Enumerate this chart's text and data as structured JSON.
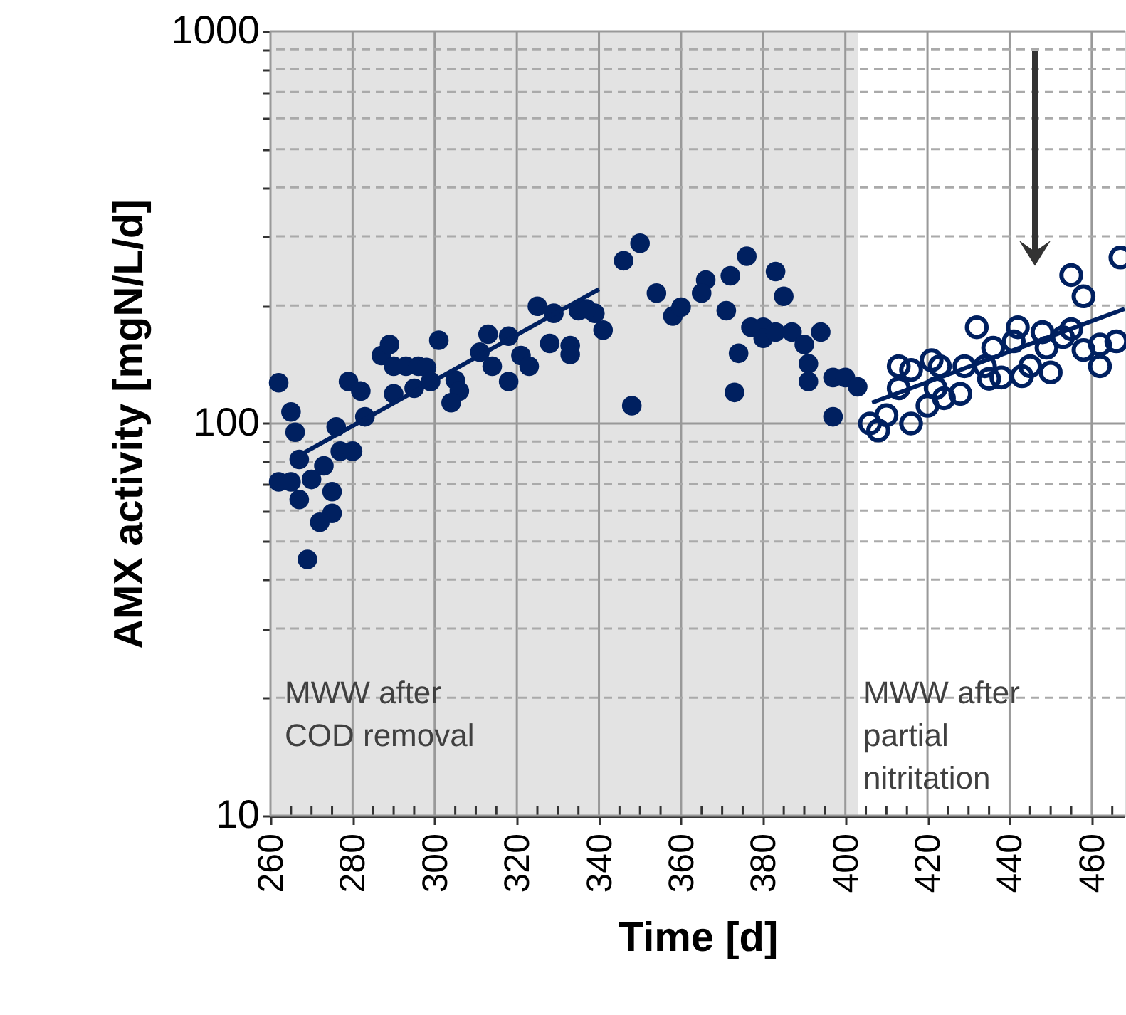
{
  "chart_data": {
    "type": "scatter",
    "xlabel": "Time [d]",
    "ylabel": "AMX activity [mgN/L/d]",
    "xlim": [
      260,
      468
    ],
    "xticks": [
      260,
      {
        "value": 265,
        "label": null
      },
      {
        "value": 270,
        "label": null
      },
      {
        "value": 275,
        "label": null
      },
      280,
      {
        "value": 285,
        "label": null
      },
      {
        "value": 290,
        "label": null
      },
      {
        "value": 295,
        "label": null
      },
      300,
      {
        "value": 305,
        "label": null
      },
      {
        "value": 310,
        "label": null
      },
      {
        "value": 315,
        "label": null
      },
      320,
      {
        "value": 325,
        "label": null
      },
      {
        "value": 330,
        "label": null
      },
      {
        "value": 335,
        "label": null
      },
      340,
      {
        "value": 345,
        "label": null
      },
      {
        "value": 350,
        "label": null
      },
      {
        "value": 355,
        "label": null
      },
      360,
      {
        "value": 365,
        "label": null
      },
      {
        "value": 370,
        "label": null
      },
      {
        "value": 375,
        "label": null
      },
      380,
      {
        "value": 385,
        "label": null
      },
      {
        "value": 390,
        "label": null
      },
      {
        "value": 395,
        "label": null
      },
      400,
      {
        "value": 405,
        "label": null
      },
      {
        "value": 410,
        "label": null
      },
      {
        "value": 415,
        "label": null
      },
      420,
      {
        "value": 425,
        "label": null
      },
      {
        "value": 430,
        "label": null
      },
      {
        "value": 435,
        "label": null
      },
      440,
      {
        "value": 445,
        "label": null
      },
      {
        "value": 450,
        "label": null
      },
      {
        "value": 455,
        "label": null
      },
      460,
      {
        "value": 465,
        "label": null
      }
    ],
    "ylim": [
      10,
      1000
    ],
    "yticks": [
      10,
      {
        "value": 20,
        "label": null
      },
      {
        "value": 30,
        "label": null
      },
      {
        "value": 40,
        "label": null
      },
      {
        "value": 50,
        "label": null
      },
      {
        "value": 60,
        "label": null
      },
      {
        "value": 70,
        "label": null
      },
      {
        "value": 80,
        "label": null
      },
      {
        "value": 90,
        "label": null
      },
      100,
      {
        "value": 200,
        "label": null
      },
      {
        "value": 300,
        "label": null
      },
      {
        "value": 400,
        "label": null
      },
      {
        "value": 500,
        "label": null
      },
      {
        "value": 600,
        "label": null
      },
      {
        "value": 700,
        "label": null
      },
      {
        "value": 800,
        "label": null
      },
      {
        "value": 900,
        "label": null
      },
      1000
    ],
    "log": true,
    "grid": true,
    "legend": false,
    "marker": "circle",
    "series": [
      {
        "type": "scatter",
        "color": "#002060",
        "x": [
          262,
          265,
          266,
          267,
          262,
          265,
          270,
          267,
          273,
          275,
          275,
          272,
          269,
          276,
          277,
          280,
          279,
          282,
          283,
          287,
          289,
          290,
          293,
          296,
          298,
          290,
          295,
          301,
          299,
          305,
          306,
          304,
          313,
          311,
          318,
          314,
          321,
          323,
          318,
          325,
          328,
          333,
          333,
          329,
          335,
          339,
          337,
          341,
          346,
          350,
          348,
          354,
          358,
          360,
          366,
          365,
          372,
          371,
          374,
          373,
          376,
          383,
          385,
          377,
          380,
          380,
          383,
          387,
          394,
          390,
          391,
          391,
          397,
          400,
          403,
          397
        ],
        "values": [
          127,
          107,
          95,
          81,
          71,
          71,
          72,
          64,
          78,
          67,
          59,
          56,
          45,
          98,
          85,
          85,
          128,
          121,
          104,
          149,
          159,
          140,
          140,
          140,
          139,
          119,
          123,
          163,
          128,
          129,
          121,
          113,
          169,
          152,
          167,
          140,
          149,
          140,
          128,
          199,
          160,
          158,
          150,
          191,
          194,
          191,
          196,
          173,
          260,
          288,
          111,
          215,
          188,
          198,
          232,
          215,
          238,
          194,
          151,
          120,
          267,
          244,
          211,
          176,
          176,
          165,
          171,
          171,
          171,
          159,
          142,
          128,
          131,
          131,
          124,
          104
        ]
      },
      {
        "type": "scatter",
        "color": "#002060",
        "x": [
          406,
          408,
          410,
          416,
          413,
          413,
          416,
          420,
          421,
          423,
          422,
          424,
          428,
          429,
          434,
          435,
          432,
          436,
          438,
          442,
          441,
          443,
          445,
          448,
          449,
          450,
          453,
          455,
          455,
          458,
          458,
          462,
          462,
          466,
          467
        ],
        "values": [
          100,
          96,
          105,
          100,
          123,
          140,
          137,
          111,
          145,
          140,
          123,
          116,
          119,
          140,
          140,
          130,
          176,
          156,
          131,
          176,
          162,
          132,
          140,
          171,
          156,
          135,
          166,
          174,
          239,
          211,
          154,
          140,
          159,
          162,
          265
        ]
      },
      {
        "type": "line",
        "color": "#002060",
        "marker": "none",
        "x": [
          268,
          340
        ],
        "values": [
          84,
          220
        ]
      },
      {
        "type": "line",
        "color": "#002060",
        "marker": "none",
        "x": [
          406.5,
          468
        ],
        "values": [
          113,
          196
        ]
      }
    ],
    "bands": [
      {
        "axis": "x",
        "from": 260,
        "to": 403,
        "color": "#e3e3e3",
        "label": "MWW after\nCOD removal"
      }
    ],
    "annotations": [
      "MWW after\npartial\nnitritation"
    ]
  }
}
